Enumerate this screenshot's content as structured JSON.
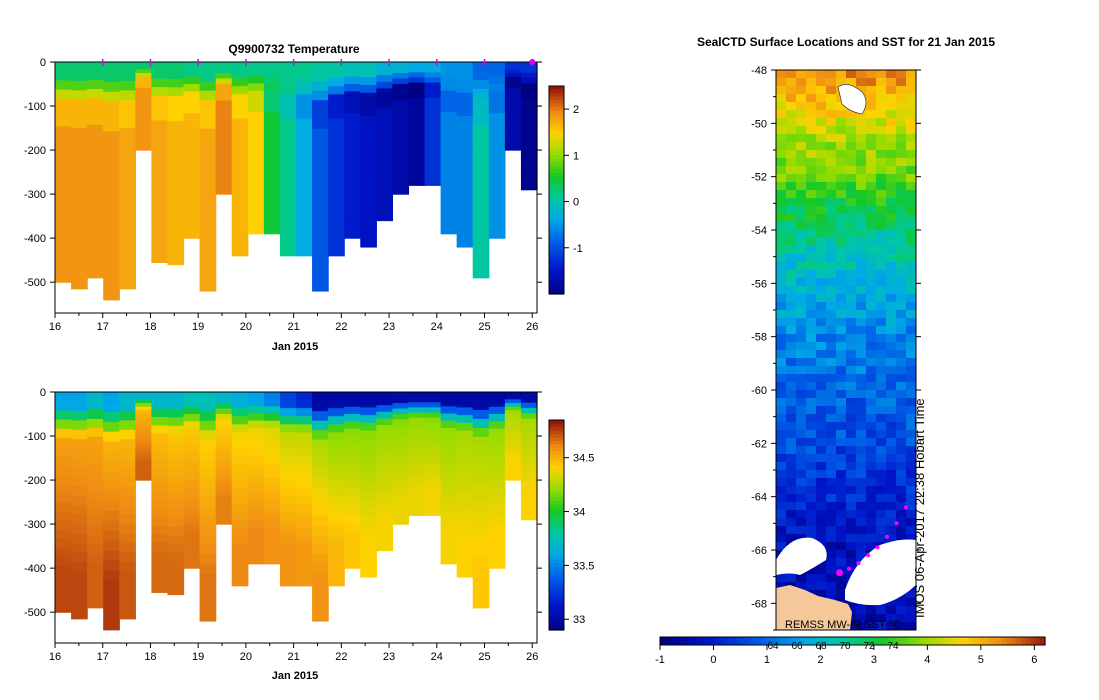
{
  "chart_data": [
    {
      "type": "heatmap",
      "title": "Q9900732  Temperature",
      "xlabel": "Jan 2015",
      "ylabel": "",
      "x_ticks": [
        "16",
        "17",
        "18",
        "19",
        "20",
        "21",
        "22",
        "23",
        "24",
        "25",
        "26"
      ],
      "xlim": [
        16,
        26.1
      ],
      "y_ticks": [
        "0",
        "-100",
        "-200",
        "-300",
        "-400",
        "-500"
      ],
      "ylim": [
        -570,
        0
      ],
      "colorbar": {
        "ticks": [
          "2",
          "1",
          "0",
          "-1"
        ],
        "range": [
          -2.0,
          2.5
        ]
      },
      "profile_markers_day": [
        17,
        18,
        19,
        20,
        21,
        22,
        23,
        24,
        25,
        26
      ],
      "profile_max_depth_m": [
        500,
        515,
        490,
        540,
        515,
        200,
        455,
        460,
        400,
        520,
        300,
        440,
        390,
        390,
        440,
        440,
        520,
        440,
        400,
        420,
        360,
        300,
        280,
        280,
        390,
        420,
        490,
        400,
        200,
        290
      ],
      "near_surface_value": [
        0.3,
        0.3,
        0.3,
        0.3,
        0.2,
        0.2,
        0.2,
        0.2,
        0.1,
        0.0,
        -0.2,
        -0.3,
        -0.5,
        -0.8,
        -1.2,
        -1.6
      ],
      "deep_value": [
        1.9,
        1.9,
        1.9,
        1.9,
        1.8,
        1.9,
        1.8,
        1.7,
        1.7,
        1.8,
        2.0,
        1.7,
        1.5,
        0.5,
        0.2,
        -0.3,
        -0.9,
        -1.2,
        -1.4,
        -1.5,
        -1.6,
        -1.7,
        -1.8,
        -1.2,
        -0.6,
        -0.6,
        0.1,
        -0.5,
        -1.7,
        -1.9
      ]
    },
    {
      "type": "heatmap",
      "title": "",
      "xlabel": "Jan 2015",
      "ylabel": "",
      "x_ticks": [
        "16",
        "17",
        "18",
        "19",
        "20",
        "21",
        "22",
        "23",
        "24",
        "25",
        "26"
      ],
      "xlim": [
        16,
        26.1
      ],
      "y_ticks": [
        "0",
        "-100",
        "-200",
        "-300",
        "-400",
        "-500"
      ],
      "ylim": [
        -570,
        0
      ],
      "colorbar": {
        "ticks": [
          "34.5",
          "34",
          "33.5",
          "33"
        ],
        "range": [
          32.9,
          34.85
        ]
      },
      "deep_value": [
        34.75,
        34.75,
        34.7,
        34.78,
        34.72,
        34.7,
        34.68,
        34.68,
        34.66,
        34.66,
        34.64,
        34.62,
        34.62,
        34.6,
        34.6,
        34.58,
        34.6,
        34.5,
        34.45,
        34.42,
        34.4,
        34.38,
        34.38,
        34.4,
        34.4,
        34.42,
        34.45,
        34.42,
        34.42,
        34.42
      ],
      "mid_value": [
        34.55,
        34.55,
        34.55,
        34.5,
        34.5,
        34.5,
        34.48,
        34.45,
        34.45,
        34.42,
        34.42,
        34.4,
        34.38,
        34.35,
        34.3,
        34.3,
        34.25,
        34.2,
        34.2,
        34.2,
        34.22,
        34.2,
        34.22,
        34.2,
        34.22,
        34.25,
        34.25,
        34.22,
        34.25,
        34.25
      ],
      "surface_value": [
        33.6,
        33.6,
        33.7,
        33.6,
        33.7,
        33.7,
        33.7,
        33.7,
        33.75,
        33.75,
        33.7,
        33.65,
        33.6,
        33.5,
        33.3,
        33.2,
        33.0,
        33.0,
        33.0,
        33.0,
        33.0,
        33.0,
        33.0,
        33.0,
        33.0,
        33.0,
        33.0,
        33.0,
        33.0,
        33.0
      ]
    },
    {
      "type": "heatmap",
      "title": "SealCTD Surface Locations and SST for 21 Jan 2015",
      "y_ticks": [
        "-48",
        "-50",
        "-52",
        "-54",
        "-56",
        "-58",
        "-60",
        "-62",
        "-64",
        "-66",
        "-68"
      ],
      "ylim": [
        -69,
        -48
      ],
      "side_label": "IMOS 06-Apr-2017 22:38 Hobart Time",
      "source_label": "REMSS MW-IR SST °C",
      "colorbar": {
        "ticks": [
          "-1",
          "0",
          "1",
          "2",
          "3",
          "4",
          "5",
          "6"
        ],
        "range": [
          -1,
          6.2
        ]
      },
      "colorbar_minor_labels": [
        "64",
        "66",
        "68",
        "70",
        "72",
        "74"
      ],
      "sst_by_latitude": [
        {
          "lat": -48,
          "sst": 5.4
        },
        {
          "lat": -50,
          "sst": 4.3
        },
        {
          "lat": -52,
          "sst": 3.6
        },
        {
          "lat": -54,
          "sst": 2.6
        },
        {
          "lat": -56,
          "sst": 1.9
        },
        {
          "lat": -58,
          "sst": 1.3
        },
        {
          "lat": -60,
          "sst": 0.9
        },
        {
          "lat": -62,
          "sst": 0.6
        },
        {
          "lat": -64,
          "sst": 0.1
        },
        {
          "lat": -66,
          "sst": -0.3
        },
        {
          "lat": -68,
          "sst": -0.4
        }
      ],
      "seal_track_lat": [
        -64.4,
        -65.0,
        -65.5,
        -65.9,
        -66.2,
        -66.5,
        -66.7
      ]
    }
  ]
}
